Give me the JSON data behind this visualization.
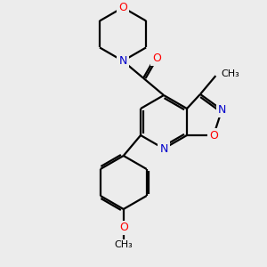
{
  "background_color": "#ececec",
  "bond_color": "#000000",
  "atom_colors": {
    "O": "#ff0000",
    "N": "#0000cc",
    "C": "#000000"
  },
  "figsize": [
    3.0,
    3.0
  ],
  "dpi": 100
}
